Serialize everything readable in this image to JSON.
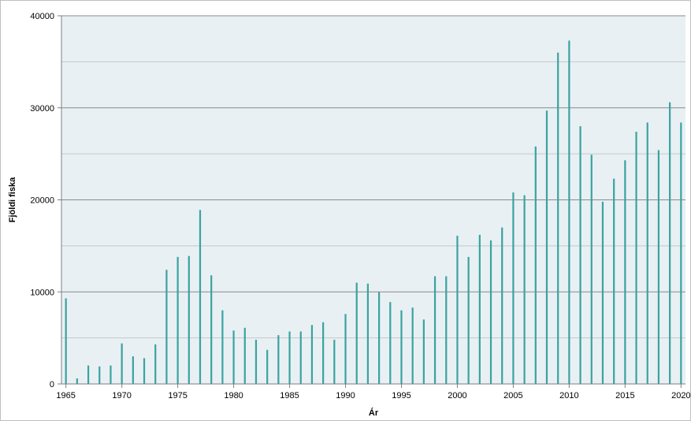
{
  "chart_data": {
    "type": "bar",
    "title": "",
    "xlabel": "Ár",
    "ylabel": "Fjöldi fiska",
    "ylim": [
      0,
      40000
    ],
    "grid": true,
    "yticks": [
      0,
      10000,
      20000,
      30000,
      40000
    ],
    "ytick_labels": [
      "0",
      "10000",
      "20000",
      "30000",
      "40000"
    ],
    "yminor_ticks": [
      5000,
      15000,
      25000,
      35000
    ],
    "xticks": [
      1965,
      1970,
      1975,
      1980,
      1985,
      1990,
      1995,
      2000,
      2005,
      2010,
      2015,
      2020
    ],
    "xtick_labels": [
      "1965",
      "1970",
      "1975",
      "1980",
      "1985",
      "1990",
      "1995",
      "2000",
      "2005",
      "2010",
      "2015",
      "2020"
    ],
    "xlim": [
      1964.6,
      2020.4
    ],
    "plot_background": "#e8f0f4",
    "bar_color": "#3aa39f",
    "categories": [
      1965,
      1966,
      1967,
      1968,
      1969,
      1970,
      1971,
      1972,
      1973,
      1974,
      1975,
      1976,
      1977,
      1978,
      1979,
      1980,
      1981,
      1982,
      1983,
      1984,
      1985,
      1986,
      1987,
      1988,
      1989,
      1990,
      1991,
      1992,
      1993,
      1994,
      1995,
      1996,
      1997,
      1998,
      1999,
      2000,
      2001,
      2002,
      2003,
      2004,
      2005,
      2006,
      2007,
      2008,
      2009,
      2010,
      2011,
      2012,
      2013,
      2014,
      2015,
      2016,
      2017,
      2018,
      2019,
      2020
    ],
    "values": [
      9300,
      600,
      2000,
      1900,
      2000,
      4400,
      3000,
      2800,
      4300,
      12400,
      13800,
      13900,
      18900,
      11800,
      8000,
      5800,
      6100,
      4800,
      3700,
      5300,
      5700,
      5700,
      6400,
      6700,
      4800,
      7600,
      11000,
      10900,
      10000,
      8900,
      8000,
      8300,
      7000,
      11700,
      11700,
      16100,
      13800,
      16200,
      15600,
      17000,
      20800,
      20500,
      25800,
      29700,
      36000,
      37300,
      28000,
      24900,
      19800,
      22300,
      24300,
      27400,
      28400,
      25400,
      30600,
      28400
    ]
  }
}
